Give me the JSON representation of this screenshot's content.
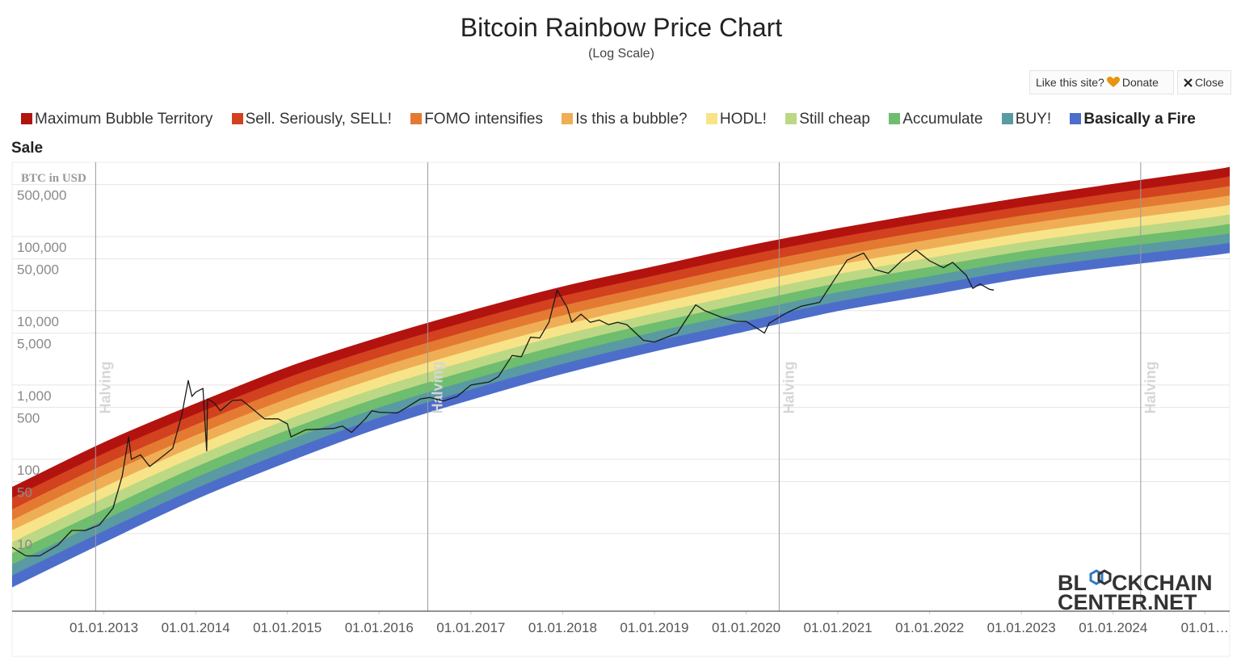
{
  "header": {
    "like": "Like this site?",
    "donate": "Donate",
    "close": "Close"
  },
  "logo": {
    "line1_start": "BL",
    "line1_end": "CKCHAIN",
    "line2": "CENTER.NET"
  },
  "chart_data": {
    "type": "rainbow",
    "title": "Bitcoin Rainbow Price Chart",
    "subtitle": "(Log Scale)",
    "y_label": "BTC in USD",
    "log_scale": true,
    "grid": true,
    "xlim": [
      2012,
      2025.27
    ],
    "ylim": [
      0.9,
      1000000
    ],
    "xticks": [
      {
        "value": 2013,
        "label": "01.01.2013"
      },
      {
        "value": 2014,
        "label": "01.01.2014"
      },
      {
        "value": 2015,
        "label": "01.01.2015"
      },
      {
        "value": 2016,
        "label": "01.01.2016"
      },
      {
        "value": 2017,
        "label": "01.01.2017"
      },
      {
        "value": 2018,
        "label": "01.01.2018"
      },
      {
        "value": 2019,
        "label": "01.01.2019"
      },
      {
        "value": 2020,
        "label": "01.01.2020"
      },
      {
        "value": 2021,
        "label": "01.01.2021"
      },
      {
        "value": 2022,
        "label": "01.01.2022"
      },
      {
        "value": 2023,
        "label": "01.01.2023"
      },
      {
        "value": 2024,
        "label": "01.01.2024"
      },
      {
        "value": 2025,
        "label": "01.01…"
      }
    ],
    "yticks": [
      {
        "value": 500000,
        "label": "500,000"
      },
      {
        "value": 100000,
        "label": "100,000"
      },
      {
        "value": 50000,
        "label": "50,000"
      },
      {
        "value": 10000,
        "label": "10,000"
      },
      {
        "value": 5000,
        "label": "5,000"
      },
      {
        "value": 1000,
        "label": "1,000"
      },
      500,
      100,
      50,
      10
    ],
    "halvings": [
      {
        "x": 2012.91,
        "label": "Halving"
      },
      {
        "x": 2016.53,
        "label": "Halving"
      },
      {
        "x": 2020.36,
        "label": "Halving"
      },
      {
        "x": 2024.3,
        "label": "Halving"
      }
    ],
    "x": [
      2012,
      2013,
      2014,
      2015,
      2016,
      2017,
      2018,
      2019,
      2020,
      2021,
      2022,
      2023,
      2024,
      2025,
      2025.27
    ],
    "series": [
      {
        "name": "Maximum Bubble Territory",
        "color": "#b3130f",
        "values": [
          42,
          168,
          560,
          1730,
          4370,
          9980,
          21100,
          39500,
          74000,
          128000,
          211000,
          332000,
          508000,
          759000,
          859000
        ]
      },
      {
        "name": "Sell. Seriously, SELL!",
        "color": "#d2421f",
        "values": [
          30,
          119,
          403,
          1250,
          3200,
          7350,
          15700,
          29500,
          55200,
          96600,
          159000,
          251000,
          383000,
          566000,
          640000
        ]
      },
      {
        "name": "FOMO intensifies",
        "color": "#e47a32",
        "values": [
          21,
          84,
          290,
          900,
          2340,
          5410,
          11600,
          22000,
          41200,
          72800,
          120000,
          190000,
          288000,
          423000,
          476000
        ]
      },
      {
        "name": "Is this a bubble?",
        "color": "#efae55",
        "values": [
          15,
          60,
          209,
          650,
          1710,
          3980,
          8590,
          16400,
          30800,
          54700,
          90200,
          144000,
          217000,
          316000,
          355000
        ]
      },
      {
        "name": "HODL!",
        "color": "#f8e488",
        "values": [
          11,
          42,
          151,
          471,
          1260,
          2930,
          6350,
          12300,
          23000,
          41200,
          67900,
          109000,
          163000,
          236000,
          264000
        ]
      },
      {
        "name": "Still cheap",
        "color": "#bcd884",
        "values": [
          7.6,
          30,
          108,
          340,
          920,
          2160,
          4710,
          9160,
          17100,
          31000,
          51200,
          82600,
          123000,
          176000,
          197000
        ]
      },
      {
        "name": "Accumulate",
        "color": "#6fbd6e",
        "values": [
          5.4,
          21,
          78,
          245,
          673,
          1590,
          3490,
          6850,
          12800,
          23400,
          38500,
          62500,
          92700,
          131000,
          147000
        ]
      },
      {
        "name": "BUY!",
        "color": "#5a9aa3",
        "values": [
          3.8,
          15,
          56,
          177,
          493,
          1170,
          2580,
          5120,
          9570,
          17600,
          29000,
          47400,
          69800,
          98200,
          109000
        ]
      },
      {
        "name": "Basically a Fire Sale",
        "color": "#4d6dcb",
        "values": [
          2.7,
          10.7,
          40,
          128,
          361,
          863,
          1910,
          3820,
          7140,
          13200,
          21800,
          35900,
          52500,
          73300,
          81300
        ]
      }
    ],
    "lower_edge": [
      1.9,
      7.6,
      29,
      92,
      264,
      635,
      1420,
      2850,
      5330,
      9980,
      16400,
      27200,
      39500,
      54700,
      60500
    ],
    "price": {
      "color": "#1a1a1a",
      "x": [
        2012,
        2012.15,
        2012.3,
        2012.5,
        2012.65,
        2012.8,
        2012.95,
        2013.1,
        2013.2,
        2013.27,
        2013.3,
        2013.4,
        2013.5,
        2013.6,
        2013.75,
        2013.85,
        2013.92,
        2013.96,
        2014,
        2014.08,
        2014.12,
        2014.13,
        2014.2,
        2014.27,
        2014.4,
        2014.5,
        2014.6,
        2014.75,
        2014.9,
        2015,
        2015.04,
        2015.2,
        2015.5,
        2015.6,
        2015.7,
        2015.85,
        2015.92,
        2016,
        2016.2,
        2016.45,
        2016.55,
        2016.7,
        2016.85,
        2017,
        2017.2,
        2017.3,
        2017.45,
        2017.55,
        2017.65,
        2017.75,
        2017.85,
        2017.94,
        2018.05,
        2018.1,
        2018.2,
        2018.3,
        2018.4,
        2018.5,
        2018.6,
        2018.7,
        2018.88,
        2019,
        2019.25,
        2019.45,
        2019.55,
        2019.75,
        2019.9,
        2020,
        2020.2,
        2020.25,
        2020.45,
        2020.6,
        2020.8,
        2020.95,
        2021.1,
        2021.28,
        2021.4,
        2021.55,
        2021.7,
        2021.85,
        2022,
        2022.15,
        2022.25,
        2022.4,
        2022.47,
        2022.55,
        2022.65,
        2022.7
      ],
      "values": [
        6.5,
        5,
        5,
        7,
        11,
        11,
        13,
        22,
        60,
        200,
        100,
        115,
        80,
        100,
        140,
        400,
        1150,
        700,
        800,
        900,
        130,
        650,
        580,
        450,
        620,
        630,
        500,
        350,
        350,
        300,
        200,
        250,
        260,
        280,
        230,
        350,
        450,
        430,
        420,
        650,
        680,
        610,
        700,
        1000,
        1100,
        1300,
        2500,
        2400,
        4400,
        4300,
        7000,
        19000,
        11000,
        7000,
        9000,
        7000,
        7500,
        6500,
        7000,
        6500,
        4000,
        3800,
        5000,
        12000,
        10000,
        8000,
        7200,
        7200,
        5000,
        6800,
        9500,
        11500,
        13000,
        25000,
        48000,
        60000,
        36000,
        32000,
        48000,
        66000,
        47000,
        38000,
        45000,
        30000,
        20000,
        23000,
        19500,
        19000
      ]
    }
  }
}
